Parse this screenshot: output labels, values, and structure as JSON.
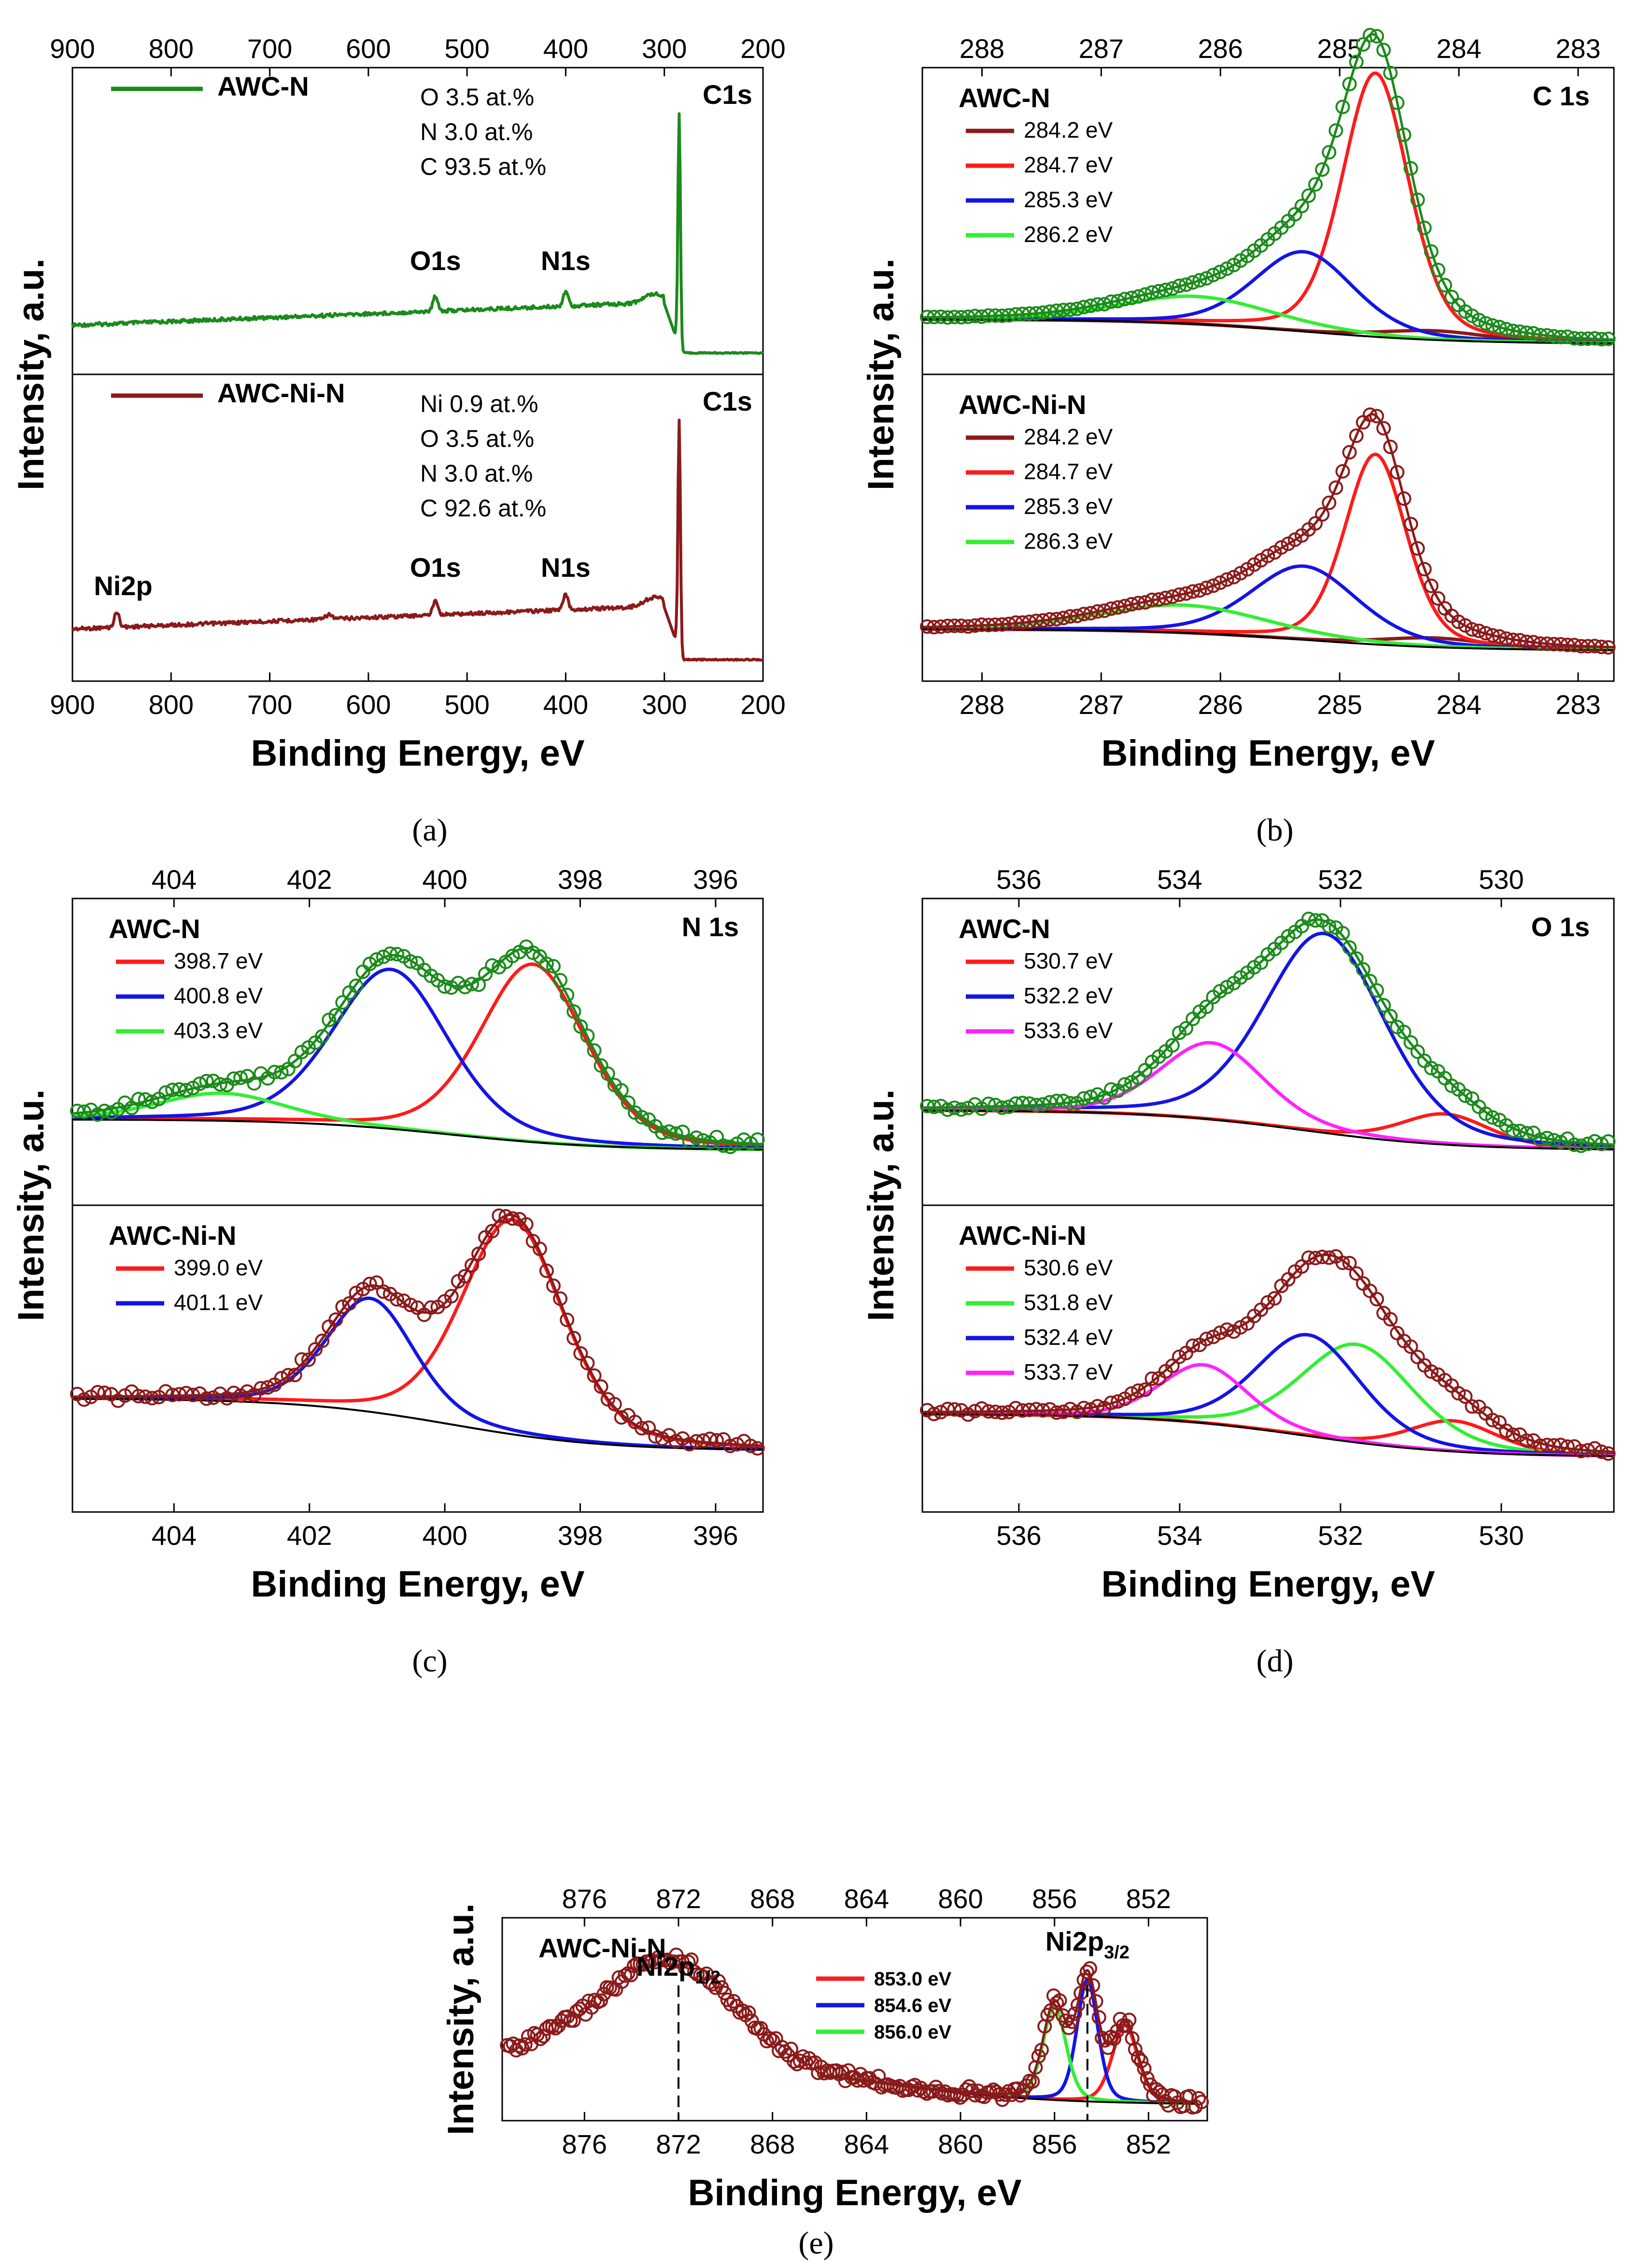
{
  "colors": {
    "green": "#1b8a1b",
    "darkred": "#8b1a1a",
    "red": "#ff1a1a",
    "blue": "#1414e6",
    "lime": "#33ee33",
    "magenta": "#ff22ff",
    "black": "#000000"
  },
  "axis_titles": {
    "x": "Binding Energy, eV",
    "y": "Intensity, a.u."
  },
  "chart_data": [
    {
      "id": "a",
      "caption": "(a)",
      "type": "line",
      "xlabel": "Binding Energy, eV",
      "ylabel": "Intensity, a.u.",
      "xlim": [
        900,
        200
      ],
      "xticks": [
        900,
        800,
        700,
        600,
        500,
        400,
        300,
        200
      ],
      "subpanels": [
        {
          "name": "AWC-N",
          "composition": [
            "O 3.5 at.%",
            "N 3.0 at.%",
            "C 93.5 at.%"
          ],
          "series": [
            {
              "name": "AWC-N",
              "color": "green"
            }
          ],
          "peaks": [
            {
              "label": "C1s",
              "x": 285
            },
            {
              "label": "O1s",
              "x": 532
            },
            {
              "label": "N1s",
              "x": 400
            }
          ]
        },
        {
          "name": "AWC-Ni-N",
          "composition": [
            "Ni 0.9 at.%",
            "O 3.5 at.%",
            "N 3.0 at.%",
            "C 92.6 at.%"
          ],
          "series": [
            {
              "name": "AWC-Ni-N",
              "color": "darkred"
            }
          ],
          "peaks": [
            {
              "label": "C1s",
              "x": 285
            },
            {
              "label": "Ni2p",
              "x": 855
            },
            {
              "label": "O1s",
              "x": 532
            },
            {
              "label": "N1s",
              "x": 400
            }
          ]
        }
      ]
    },
    {
      "id": "b",
      "caption": "(b)",
      "type": "line",
      "xlabel": "Binding Energy, eV",
      "ylabel": "Intensity, a.u.",
      "xlim": [
        288.5,
        282.7
      ],
      "xticks": [
        288,
        287,
        286,
        285,
        284,
        283
      ],
      "corner_label": "C 1s",
      "subpanels": [
        {
          "name": "AWC-N",
          "components": [
            {
              "label": "284.2 eV",
              "center": 284.2,
              "color": "darkred"
            },
            {
              "label": "284.7 eV",
              "center": 284.7,
              "color": "red"
            },
            {
              "label": "285.3 eV",
              "center": 285.3,
              "color": "blue"
            },
            {
              "label": "286.2 eV",
              "center": 286.2,
              "color": "lime"
            }
          ]
        },
        {
          "name": "AWC-Ni-N",
          "components": [
            {
              "label": "284.2 eV",
              "center": 284.2,
              "color": "darkred"
            },
            {
              "label": "284.7 eV",
              "center": 284.7,
              "color": "red"
            },
            {
              "label": "285.3 eV",
              "center": 285.3,
              "color": "blue"
            },
            {
              "label": "286.3 eV",
              "center": 286.3,
              "color": "lime"
            }
          ]
        }
      ]
    },
    {
      "id": "c",
      "caption": "(c)",
      "type": "line",
      "xlabel": "Binding Energy, eV",
      "ylabel": "Intensity, a.u.",
      "xlim": [
        405.5,
        395.3
      ],
      "xticks": [
        404,
        402,
        400,
        398,
        396
      ],
      "corner_label": "N 1s",
      "subpanels": [
        {
          "name": "AWC-N",
          "components": [
            {
              "label": "398.7 eV",
              "center": 398.7,
              "color": "red"
            },
            {
              "label": "400.8 eV",
              "center": 400.8,
              "color": "blue"
            },
            {
              "label": "403.3 eV",
              "center": 403.3,
              "color": "lime"
            }
          ]
        },
        {
          "name": "AWC-Ni-N",
          "components": [
            {
              "label": "399.0 eV",
              "center": 399.0,
              "color": "red"
            },
            {
              "label": "401.1 eV",
              "center": 401.1,
              "color": "blue"
            }
          ]
        }
      ]
    },
    {
      "id": "d",
      "caption": "(d)",
      "type": "line",
      "xlabel": "Binding Energy, eV",
      "ylabel": "Intensity, a.u.",
      "xlim": [
        537.2,
        528.6
      ],
      "xticks": [
        536,
        534,
        532,
        530
      ],
      "corner_label": "O 1s",
      "subpanels": [
        {
          "name": "AWC-N",
          "components": [
            {
              "label": "530.7 eV",
              "center": 530.7,
              "color": "red"
            },
            {
              "label": "532.2 eV",
              "center": 532.2,
              "color": "blue"
            },
            {
              "label": "533.6 eV",
              "center": 533.6,
              "color": "magenta"
            }
          ]
        },
        {
          "name": "AWC-Ni-N",
          "components": [
            {
              "label": "530.6 eV",
              "center": 530.6,
              "color": "red"
            },
            {
              "label": "531.8 eV",
              "center": 531.8,
              "color": "lime"
            },
            {
              "label": "532.4 eV",
              "center": 532.4,
              "color": "blue"
            },
            {
              "label": "533.7 eV",
              "center": 533.7,
              "color": "magenta"
            }
          ]
        }
      ]
    },
    {
      "id": "e",
      "caption": "(e)",
      "type": "line",
      "xlabel": "Binding Energy, eV",
      "ylabel": "Intensity, a.u.",
      "xlim": [
        879.5,
        849.5
      ],
      "xticks": [
        876,
        872,
        868,
        864,
        860,
        856,
        852
      ],
      "subpanels": [
        {
          "name": "AWC-Ni-N",
          "peak_labels": [
            {
              "text": "Ni2p",
              "sub": "1/2",
              "x": 872
            },
            {
              "text": "Ni2p",
              "sub": "3/2",
              "x": 854.6
            }
          ],
          "components": [
            {
              "label": "853.0 eV",
              "center": 853.0,
              "color": "red"
            },
            {
              "label": "854.6 eV",
              "center": 854.6,
              "color": "blue"
            },
            {
              "label": "856.0 eV",
              "center": 856.0,
              "color": "lime"
            }
          ]
        }
      ]
    }
  ]
}
